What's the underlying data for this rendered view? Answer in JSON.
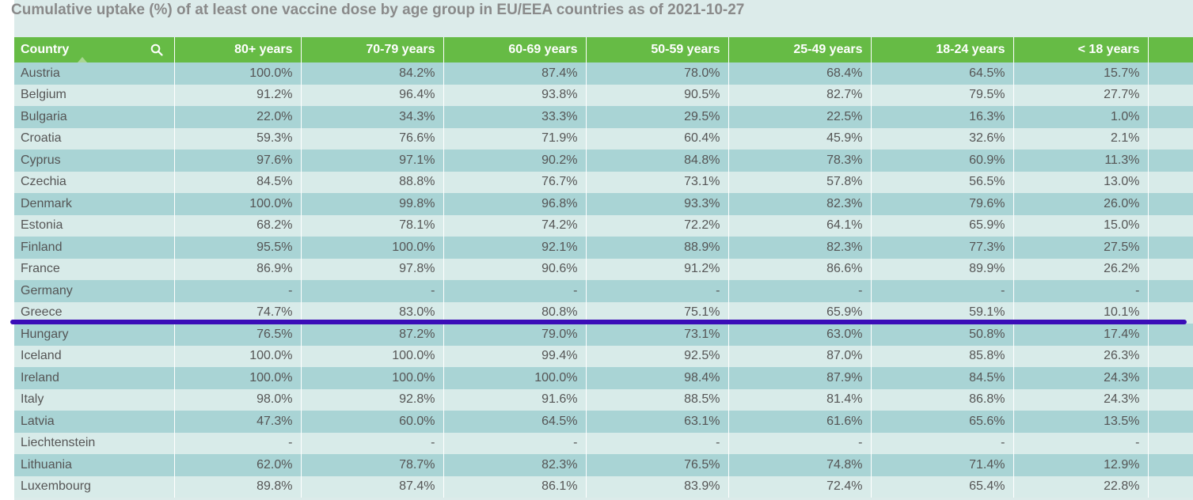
{
  "title": "Cumulative uptake (%) of at least one vaccine dose by age group in EU/EEA countries as of 2021-10-27",
  "table": {
    "columns": [
      "Country",
      "80+ years",
      "70-79 years",
      "60-69 years",
      "50-59 years",
      "25-49 years",
      "18-24 years",
      "< 18 years"
    ],
    "rows": [
      [
        "Austria",
        "100.0%",
        "84.2%",
        "87.4%",
        "78.0%",
        "68.4%",
        "64.5%",
        "15.7%"
      ],
      [
        "Belgium",
        "91.2%",
        "96.4%",
        "93.8%",
        "90.5%",
        "82.7%",
        "79.5%",
        "27.7%"
      ],
      [
        "Bulgaria",
        "22.0%",
        "34.3%",
        "33.3%",
        "29.5%",
        "22.5%",
        "16.3%",
        "1.0%"
      ],
      [
        "Croatia",
        "59.3%",
        "76.6%",
        "71.9%",
        "60.4%",
        "45.9%",
        "32.6%",
        "2.1%"
      ],
      [
        "Cyprus",
        "97.6%",
        "97.1%",
        "90.2%",
        "84.8%",
        "78.3%",
        "60.9%",
        "11.3%"
      ],
      [
        "Czechia",
        "84.5%",
        "88.8%",
        "76.7%",
        "73.1%",
        "57.8%",
        "56.5%",
        "13.0%"
      ],
      [
        "Denmark",
        "100.0%",
        "99.8%",
        "96.8%",
        "93.3%",
        "82.3%",
        "79.6%",
        "26.0%"
      ],
      [
        "Estonia",
        "68.2%",
        "78.1%",
        "74.2%",
        "72.2%",
        "64.1%",
        "65.9%",
        "15.0%"
      ],
      [
        "Finland",
        "95.5%",
        "100.0%",
        "92.1%",
        "88.9%",
        "82.3%",
        "77.3%",
        "27.5%"
      ],
      [
        "France",
        "86.9%",
        "97.8%",
        "90.6%",
        "91.2%",
        "86.6%",
        "89.9%",
        "26.2%"
      ],
      [
        "Germany",
        "-",
        "-",
        "-",
        "-",
        "-",
        "-",
        "-"
      ],
      [
        "Greece",
        "74.7%",
        "83.0%",
        "80.8%",
        "75.1%",
        "65.9%",
        "59.1%",
        "10.1%"
      ],
      [
        "Hungary",
        "76.5%",
        "87.2%",
        "79.0%",
        "73.1%",
        "63.0%",
        "50.8%",
        "17.4%"
      ],
      [
        "Iceland",
        "100.0%",
        "100.0%",
        "99.4%",
        "92.5%",
        "87.0%",
        "85.8%",
        "26.3%"
      ],
      [
        "Ireland",
        "100.0%",
        "100.0%",
        "100.0%",
        "98.4%",
        "87.9%",
        "84.5%",
        "24.3%"
      ],
      [
        "Italy",
        "98.0%",
        "92.8%",
        "91.6%",
        "88.5%",
        "81.4%",
        "86.8%",
        "24.3%"
      ],
      [
        "Latvia",
        "47.3%",
        "60.0%",
        "64.5%",
        "63.1%",
        "61.6%",
        "65.6%",
        "13.5%"
      ],
      [
        "Liechtenstein",
        "-",
        "-",
        "-",
        "-",
        "-",
        "-",
        "-"
      ],
      [
        "Lithuania",
        "62.0%",
        "78.7%",
        "82.3%",
        "76.5%",
        "74.8%",
        "71.4%",
        "12.9%"
      ],
      [
        "Luxembourg",
        "89.8%",
        "87.4%",
        "86.1%",
        "83.9%",
        "72.4%",
        "65.4%",
        "22.8%"
      ]
    ]
  },
  "chart_data": {
    "type": "table",
    "title": "Cumulative uptake (%) of at least one vaccine dose by age group in EU/EEA countries as of 2021-10-27",
    "columns": [
      "Country",
      "80+ years",
      "70-79 years",
      "60-69 years",
      "50-59 years",
      "25-49 years",
      "18-24 years",
      "< 18 years"
    ],
    "rows": [
      [
        "Austria",
        100.0,
        84.2,
        87.4,
        78.0,
        68.4,
        64.5,
        15.7
      ],
      [
        "Belgium",
        91.2,
        96.4,
        93.8,
        90.5,
        82.7,
        79.5,
        27.7
      ],
      [
        "Bulgaria",
        22.0,
        34.3,
        33.3,
        29.5,
        22.5,
        16.3,
        1.0
      ],
      [
        "Croatia",
        59.3,
        76.6,
        71.9,
        60.4,
        45.9,
        32.6,
        2.1
      ],
      [
        "Cyprus",
        97.6,
        97.1,
        90.2,
        84.8,
        78.3,
        60.9,
        11.3
      ],
      [
        "Czechia",
        84.5,
        88.8,
        76.7,
        73.1,
        57.8,
        56.5,
        13.0
      ],
      [
        "Denmark",
        100.0,
        99.8,
        96.8,
        93.3,
        82.3,
        79.6,
        26.0
      ],
      [
        "Estonia",
        68.2,
        78.1,
        74.2,
        72.2,
        64.1,
        65.9,
        15.0
      ],
      [
        "Finland",
        95.5,
        100.0,
        92.1,
        88.9,
        82.3,
        77.3,
        27.5
      ],
      [
        "France",
        86.9,
        97.8,
        90.6,
        91.2,
        86.6,
        89.9,
        26.2
      ],
      [
        "Germany",
        null,
        null,
        null,
        null,
        null,
        null,
        null
      ],
      [
        "Greece",
        74.7,
        83.0,
        80.8,
        75.1,
        65.9,
        59.1,
        10.1
      ],
      [
        "Hungary",
        76.5,
        87.2,
        79.0,
        73.1,
        63.0,
        50.8,
        17.4
      ],
      [
        "Iceland",
        100.0,
        100.0,
        99.4,
        92.5,
        87.0,
        85.8,
        26.3
      ],
      [
        "Ireland",
        100.0,
        100.0,
        100.0,
        98.4,
        87.9,
        84.5,
        24.3
      ],
      [
        "Italy",
        98.0,
        92.8,
        91.6,
        88.5,
        81.4,
        86.8,
        24.3
      ],
      [
        "Latvia",
        47.3,
        60.0,
        64.5,
        63.1,
        61.6,
        65.6,
        13.5
      ],
      [
        "Liechtenstein",
        null,
        null,
        null,
        null,
        null,
        null,
        null
      ],
      [
        "Lithuania",
        62.0,
        78.7,
        82.3,
        76.5,
        74.8,
        71.4,
        12.9
      ],
      [
        "Luxembourg",
        89.8,
        87.4,
        86.1,
        83.9,
        72.4,
        65.4,
        22.8
      ]
    ]
  },
  "colors": {
    "header_bg": "#66bb45",
    "row_odd": "#a9d4d5",
    "row_even": "#d8ebe9",
    "title": "#8a8a8a",
    "annotation_line": "#3a0db8"
  },
  "icons": {
    "search": "search-icon",
    "sort": "sort-ascending-icon"
  }
}
